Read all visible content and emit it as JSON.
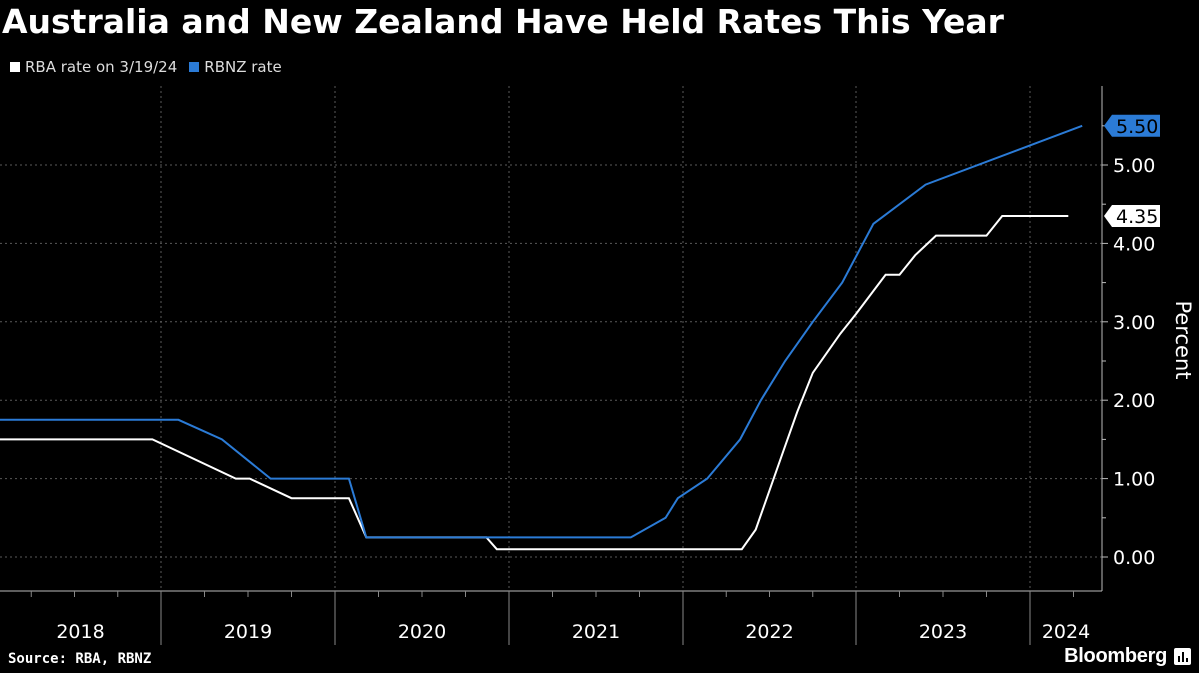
{
  "title": "Australia and New Zealand Have Held Rates This Year",
  "source": "Source: RBA, RBNZ",
  "brand": "Bloomberg",
  "colors": {
    "rba": "#ffffff",
    "rbnz": "#2b7bd6",
    "grid": "#5a5a5a",
    "background": "#000000"
  },
  "chart_data": {
    "type": "line",
    "ylabel": "Percent",
    "ylim": [
      -0.45,
      6.0
    ],
    "yticks": [
      0,
      1,
      2,
      3,
      4,
      5
    ],
    "ytick_labels": [
      "0.00",
      "1.00",
      "2.00",
      "3.00",
      "4.00",
      "5.00"
    ],
    "xlim": [
      2018.0,
      2024.35
    ],
    "xtick_labels": [
      "2018",
      "2019",
      "2020",
      "2021",
      "2022",
      "2023",
      "2024"
    ],
    "year_starts": [
      2018,
      2019,
      2020,
      2021,
      2022,
      2023,
      2024
    ],
    "legend_position": "top-left",
    "end_labels": [
      {
        "series": "RBNZ rate",
        "value": "5.50"
      },
      {
        "series": "RBA rate on 3/19/24",
        "value": "4.35"
      }
    ],
    "series": [
      {
        "name": "RBA rate on 3/19/24",
        "x": [
          2018.0,
          2018.85,
          2018.95,
          2019.43,
          2019.51,
          2019.75,
          2019.81,
          2020.08,
          2020.18,
          2020.87,
          2020.93,
          2022.34,
          2022.42,
          2022.5,
          2022.58,
          2022.66,
          2022.75,
          2022.83,
          2022.91,
          2023.0,
          2023.17,
          2023.25,
          2023.34,
          2023.46,
          2023.75,
          2023.84,
          2024.22
        ],
        "values": [
          1.5,
          1.5,
          1.5,
          1.0,
          1.0,
          0.75,
          0.75,
          0.75,
          0.25,
          0.25,
          0.1,
          0.1,
          0.35,
          0.85,
          1.35,
          1.85,
          2.35,
          2.6,
          2.85,
          3.1,
          3.6,
          3.6,
          3.85,
          4.1,
          4.1,
          4.35,
          4.35
        ]
      },
      {
        "name": "RBNZ rate",
        "x": [
          2018.0,
          2019.1,
          2019.35,
          2019.63,
          2020.08,
          2020.18,
          2021.7,
          2021.9,
          2021.97,
          2022.14,
          2022.33,
          2022.45,
          2022.59,
          2022.75,
          2022.92,
          2023.1,
          2023.4,
          2024.3
        ],
        "values": [
          1.75,
          1.75,
          1.5,
          1.0,
          1.0,
          0.25,
          0.25,
          0.5,
          0.75,
          1.0,
          1.5,
          2.0,
          2.5,
          3.0,
          3.5,
          4.25,
          4.75,
          5.5
        ]
      }
    ]
  }
}
